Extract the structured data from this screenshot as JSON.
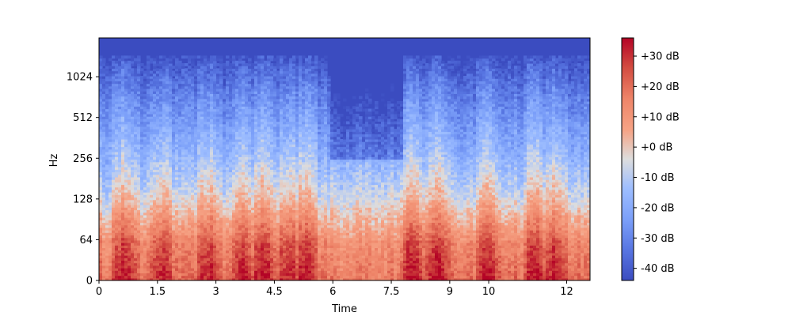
{
  "chart_data": {
    "type": "heatmap",
    "title": "",
    "xlabel": "Time",
    "ylabel": "Hz",
    "x_axis": {
      "range": [
        0,
        12.6
      ],
      "ticks": [
        {
          "value": 0,
          "label": "0"
        },
        {
          "value": 1.5,
          "label": "1.5"
        },
        {
          "value": 3,
          "label": "3"
        },
        {
          "value": 4.5,
          "label": "4.5"
        },
        {
          "value": 6,
          "label": "6"
        },
        {
          "value": 7.5,
          "label": "7.5"
        },
        {
          "value": 9,
          "label": "9"
        },
        {
          "value": 10,
          "label": "10"
        },
        {
          "value": 12,
          "label": "12"
        }
      ]
    },
    "y_axis": {
      "scale": "symlog",
      "ticks": [
        {
          "value": 0,
          "label": "0"
        },
        {
          "value": 64,
          "label": "64"
        },
        {
          "value": 128,
          "label": "128"
        },
        {
          "value": 256,
          "label": "256"
        },
        {
          "value": 512,
          "label": "512"
        },
        {
          "value": 1024,
          "label": "1024"
        }
      ]
    },
    "colorbar": {
      "colormap": "coolwarm",
      "range_db": [
        -44,
        36
      ],
      "ticks": [
        {
          "value": 30,
          "label": "+30 dB"
        },
        {
          "value": 20,
          "label": "+20 dB"
        },
        {
          "value": 10,
          "label": "+10 dB"
        },
        {
          "value": 0,
          "label": "+0 dB"
        },
        {
          "value": -10,
          "label": "-10 dB"
        },
        {
          "value": -20,
          "label": "-20 dB"
        },
        {
          "value": -30,
          "label": "-30 dB"
        },
        {
          "value": -40,
          "label": "-40 dB"
        }
      ]
    },
    "colors": {
      "low": "#3b4cc0",
      "mid": "#dddddd",
      "high": "#b40426"
    },
    "harmonic_bursts": [
      {
        "t_start": 0.4,
        "t_end": 0.9
      },
      {
        "t_start": 1.4,
        "t_end": 1.8
      },
      {
        "t_start": 2.6,
        "t_end": 3.0
      },
      {
        "t_start": 3.5,
        "t_end": 3.9
      },
      {
        "t_start": 4.0,
        "t_end": 4.4
      },
      {
        "t_start": 4.7,
        "t_end": 5.0
      },
      {
        "t_start": 5.1,
        "t_end": 5.5
      },
      {
        "t_start": 7.8,
        "t_end": 8.3
      },
      {
        "t_start": 8.4,
        "t_end": 9.0
      },
      {
        "t_start": 9.8,
        "t_end": 10.2
      },
      {
        "t_start": 11.0,
        "t_end": 11.4
      },
      {
        "t_start": 11.5,
        "t_end": 11.9
      }
    ]
  }
}
